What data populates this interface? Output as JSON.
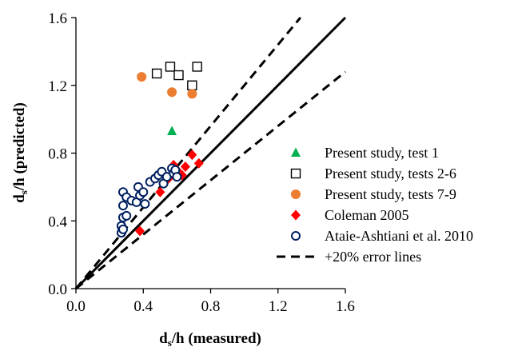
{
  "chart_data": {
    "type": "scatter",
    "xlabel": {
      "main": "d",
      "sub": "s",
      "rest": "/h (measured)"
    },
    "ylabel": {
      "main": "d",
      "sub": "s",
      "rest": "/h (predicted)"
    },
    "xlim": [
      0,
      1.6
    ],
    "ylim": [
      0,
      1.6
    ],
    "xticks": [
      "0.0",
      "0.4",
      "0.8",
      "1.2",
      "1.6"
    ],
    "yticks": [
      "0.0",
      "0.4",
      "0.8",
      "1.2",
      "1.6"
    ],
    "grid": false,
    "legend_position": "bottom-right",
    "series": [
      {
        "name": "Present study, test 1",
        "marker": "triangle",
        "color": "#00b050",
        "x": [
          0.57
        ],
        "y": [
          0.93
        ]
      },
      {
        "name": "Present study, tests 2-6",
        "marker": "square-open",
        "color": "#000000",
        "x": [
          0.48,
          0.56,
          0.61,
          0.69,
          0.72
        ],
        "y": [
          1.27,
          1.31,
          1.26,
          1.2,
          1.31
        ]
      },
      {
        "name": "Present study, tests 7-9",
        "marker": "circle",
        "color": "#ed7d31",
        "x": [
          0.39,
          0.57,
          0.69
        ],
        "y": [
          1.25,
          1.16,
          1.15
        ]
      },
      {
        "name": "Coleman 2005",
        "marker": "diamond",
        "color": "#ff0000",
        "x": [
          0.38,
          0.5,
          0.55,
          0.58,
          0.6,
          0.63,
          0.65,
          0.69,
          0.73
        ],
        "y": [
          0.34,
          0.57,
          0.65,
          0.73,
          0.7,
          0.67,
          0.72,
          0.79,
          0.74
        ]
      },
      {
        "name": "Ataie-Ashtiani et al. 2010",
        "marker": "circle-open",
        "color": "#002060",
        "x": [
          0.27,
          0.27,
          0.28,
          0.28,
          0.28,
          0.28,
          0.3,
          0.3,
          0.33,
          0.36,
          0.37,
          0.38,
          0.4,
          0.41,
          0.44,
          0.47,
          0.49,
          0.51,
          0.52,
          0.54,
          0.57,
          0.58,
          0.59,
          0.6
        ],
        "y": [
          0.33,
          0.37,
          0.35,
          0.42,
          0.49,
          0.57,
          0.54,
          0.43,
          0.52,
          0.51,
          0.6,
          0.55,
          0.57,
          0.5,
          0.63,
          0.65,
          0.67,
          0.69,
          0.62,
          0.66,
          0.71,
          0.68,
          0.7,
          0.66
        ]
      }
    ],
    "lines": [
      {
        "name": "",
        "style": "solid",
        "color": "#000000",
        "x": [
          0,
          1.6
        ],
        "y": [
          0,
          1.6
        ]
      },
      {
        "name": "+20% error lines",
        "style": "dashed",
        "color": "#000000",
        "x": [
          0,
          1.3333
        ],
        "y": [
          0,
          1.6
        ]
      },
      {
        "name": "",
        "style": "dashed",
        "color": "#000000",
        "x": [
          0,
          1.6
        ],
        "y": [
          0,
          1.28
        ]
      }
    ],
    "legend": [
      {
        "label": "Present study, test 1",
        "marker": "triangle",
        "color": "#00b050"
      },
      {
        "label": "Present study, tests 2-6",
        "marker": "square-open",
        "color": "#000000"
      },
      {
        "label": "Present study, tests 7-9",
        "marker": "circle",
        "color": "#ed7d31"
      },
      {
        "label": "Coleman 2005",
        "marker": "diamond",
        "color": "#ff0000"
      },
      {
        "label": "Ataie-Ashtiani et al. 2010",
        "marker": "circle-open",
        "color": "#002060"
      },
      {
        "label": "+20% error lines",
        "marker": "dashed-line",
        "color": "#000000"
      }
    ]
  }
}
